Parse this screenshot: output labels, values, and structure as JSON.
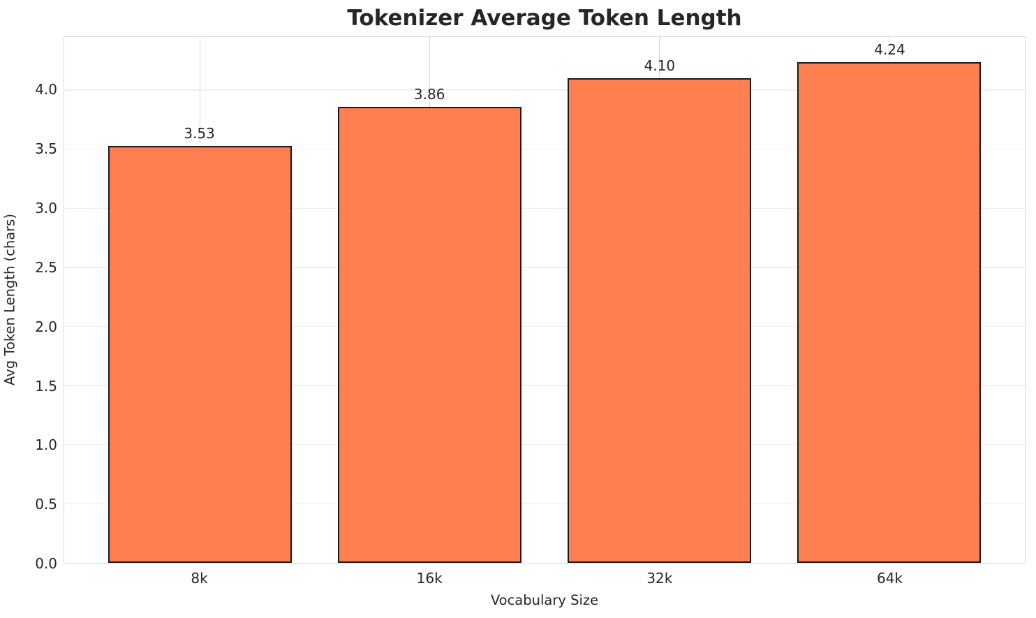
{
  "figure": {
    "background_color": "#ffffff"
  },
  "chart_data": {
    "type": "bar",
    "title": "Tokenizer Average Token Length",
    "xlabel": "Vocabulary Size",
    "ylabel": "Avg Token Length (chars)",
    "categories": [
      "8k",
      "16k",
      "32k",
      "64k"
    ],
    "values": [
      3.53,
      3.86,
      4.1,
      4.24
    ],
    "bar_value_labels": [
      "3.53",
      "3.86",
      "4.10",
      "4.24"
    ],
    "ylim": [
      0,
      4.45
    ],
    "yticks": [
      0.0,
      0.5,
      1.0,
      1.5,
      2.0,
      2.5,
      3.0,
      3.5,
      4.0
    ],
    "ytick_labels": [
      "0.0",
      "0.5",
      "1.0",
      "1.5",
      "2.0",
      "2.5",
      "3.0",
      "3.5",
      "4.0"
    ],
    "bar_width_data_units": 0.8,
    "x_data_margin": 0.05,
    "grid": true,
    "legend_position": "none",
    "bar_color": "#FF7F50",
    "bar_edge_color": "#1a1a1a",
    "grid_color_horizontal": "#efefef",
    "grid_color_vertical": "#d8d8d8",
    "spine_color": "#d9d9d9",
    "text_color": "#262626"
  }
}
